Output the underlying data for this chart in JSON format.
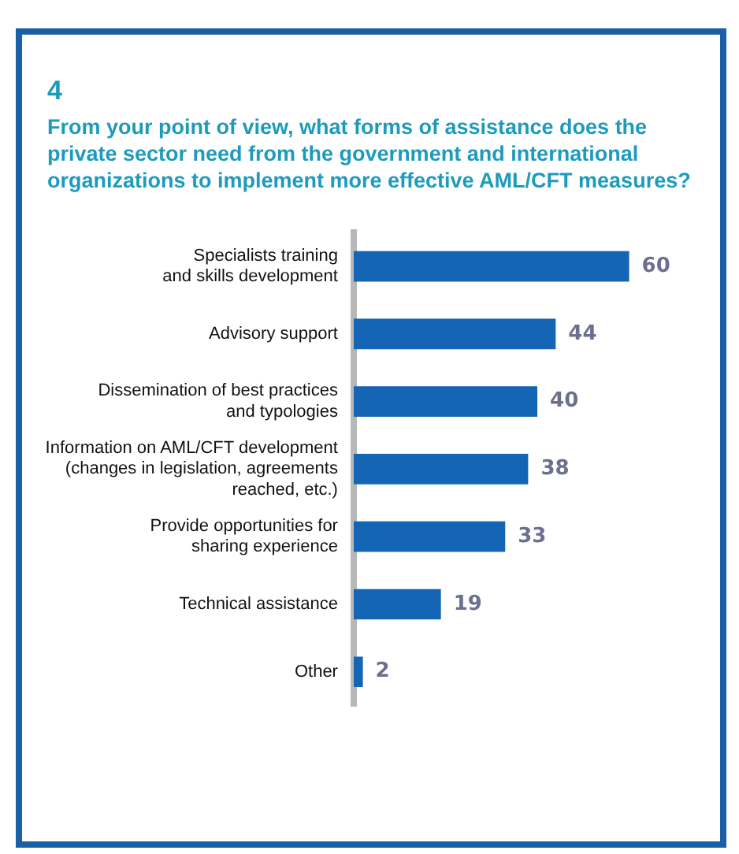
{
  "chart_data": {
    "type": "bar",
    "orientation": "horizontal",
    "title": "4",
    "subtitle": "From your point of view, what forms of assistance does the private sector need from the government and international organizations to implement more effective AML/CFT measures?",
    "categories": [
      "Specialists training\nand skills development",
      "Advisory support",
      "Dissemination of best practices\nand typologies",
      "Information on AML/CFT development\n(changes in legislation, agreements\nreached, etc.)",
      "Provide opportunities for\nsharing experience",
      "Technical assistance",
      "Other"
    ],
    "values": [
      60,
      44,
      40,
      38,
      33,
      19,
      2
    ],
    "color": "#1466b4",
    "data_labels": true
  }
}
